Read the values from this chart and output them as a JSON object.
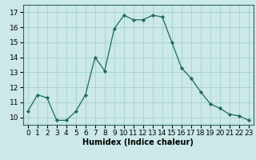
{
  "x": [
    0,
    1,
    2,
    3,
    4,
    5,
    6,
    7,
    8,
    9,
    10,
    11,
    12,
    13,
    14,
    15,
    16,
    17,
    18,
    19,
    20,
    21,
    22,
    23
  ],
  "y": [
    10.4,
    11.5,
    11.3,
    9.8,
    9.8,
    10.4,
    11.5,
    14.0,
    13.1,
    15.9,
    16.8,
    16.5,
    16.5,
    16.8,
    16.7,
    15.0,
    13.3,
    12.6,
    11.7,
    10.9,
    10.6,
    10.2,
    10.1,
    9.8
  ],
  "line_color": "#1a6b5a",
  "marker_color": "#1a6b5a",
  "bg_color": "#cce8e8",
  "grid_color": "#99cccc",
  "xlabel": "Humidex (Indice chaleur)",
  "ylim": [
    9.5,
    17.5
  ],
  "yticks": [
    10,
    11,
    12,
    13,
    14,
    15,
    16,
    17
  ],
  "xticks": [
    0,
    1,
    2,
    3,
    4,
    5,
    6,
    7,
    8,
    9,
    10,
    11,
    12,
    13,
    14,
    15,
    16,
    17,
    18,
    19,
    20,
    21,
    22,
    23
  ],
  "xlabel_fontsize": 7.0,
  "tick_fontsize": 6.5
}
